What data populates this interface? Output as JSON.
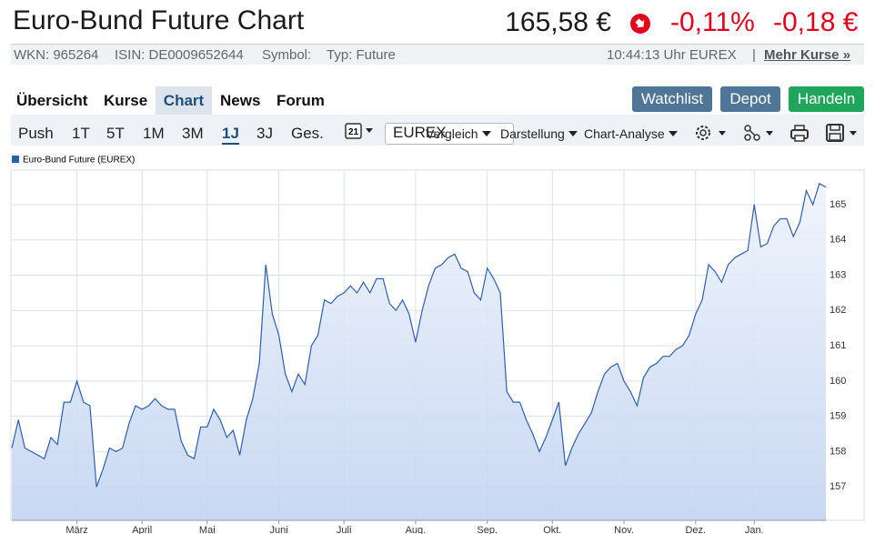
{
  "header": {
    "title": "Euro-Bund Future Chart",
    "price": "165,58 €",
    "change_pct": "-0,11%",
    "change_abs": "-0,18 €"
  },
  "info": {
    "wkn": "WKN: 965264",
    "isin": "ISIN: DE0009652644",
    "symbol": "Symbol:",
    "type": "Typ: Future",
    "time": "10:44:13 Uhr EUREX",
    "separator": "|",
    "more": "Mehr Kurse »"
  },
  "tabs": [
    "Übersicht",
    "Kurse",
    "Chart",
    "News",
    "Forum"
  ],
  "buttons": [
    "Watchlist",
    "Depot",
    "Handeln"
  ],
  "ranges": [
    "Push",
    "1T",
    "5T",
    "1M",
    "3M",
    "1J",
    "3J",
    "Ges."
  ],
  "toolbar": {
    "calendar": "21",
    "exchange": "EUREX",
    "compare": "Vergleich",
    "display": "Darstellung",
    "analysis": "Chart-Analyse"
  },
  "chart_data": {
    "type": "area",
    "categories": [
      null,
      null,
      null,
      null,
      null,
      null,
      null,
      null,
      null,
      null,
      "März",
      null,
      null,
      null,
      null,
      null,
      null,
      null,
      null,
      null,
      "April",
      null,
      null,
      null,
      null,
      null,
      null,
      null,
      null,
      null,
      "Mai",
      null,
      null,
      null,
      null,
      null,
      null,
      null,
      null,
      null,
      null,
      "Juni",
      null,
      null,
      null,
      null,
      null,
      null,
      null,
      null,
      null,
      "Juli",
      null,
      null,
      null,
      null,
      null,
      null,
      null,
      null,
      null,
      null,
      "Aug.",
      null,
      null,
      null,
      null,
      null,
      null,
      null,
      null,
      null,
      null,
      "Sep.",
      null,
      null,
      null,
      null,
      null,
      null,
      null,
      null,
      null,
      "Okt.",
      null,
      null,
      null,
      null,
      null,
      null,
      null,
      null,
      null,
      null,
      "Nov.",
      null,
      null,
      null,
      null,
      null,
      null,
      null,
      null,
      null,
      null,
      "Dez.",
      null,
      null,
      null,
      null,
      null,
      null,
      null,
      null,
      "Jan.",
      null,
      null,
      null,
      null,
      null,
      null,
      null,
      null,
      null,
      null,
      null
    ],
    "series": [
      {
        "name": "Euro-Bund Future (EUREX)",
        "color": "#2d5fae",
        "values": [
          158.1,
          158.9,
          158.1,
          158.0,
          157.9,
          157.8,
          158.4,
          158.2,
          159.4,
          159.4,
          160.0,
          159.4,
          159.3,
          157.0,
          157.5,
          158.1,
          158.0,
          158.1,
          158.8,
          159.3,
          159.2,
          159.3,
          159.5,
          159.3,
          159.2,
          159.2,
          158.3,
          157.9,
          157.8,
          158.7,
          158.7,
          159.2,
          158.9,
          158.4,
          158.6,
          157.9,
          158.9,
          159.5,
          160.5,
          163.3,
          161.9,
          161.3,
          160.2,
          159.7,
          160.2,
          159.9,
          161.0,
          161.3,
          162.3,
          162.2,
          162.4,
          162.5,
          162.7,
          162.5,
          162.8,
          162.5,
          162.9,
          162.9,
          162.2,
          162.0,
          162.3,
          161.9,
          161.1,
          162.0,
          162.7,
          163.2,
          163.3,
          163.5,
          163.6,
          163.2,
          163.1,
          162.5,
          162.3,
          163.2,
          162.9,
          162.5,
          159.7,
          159.4,
          159.4,
          158.9,
          158.5,
          158.0,
          158.4,
          158.9,
          159.4,
          157.6,
          158.1,
          158.5,
          158.8,
          159.1,
          159.7,
          160.2,
          160.4,
          160.5,
          160.0,
          159.7,
          159.3,
          160.1,
          160.4,
          160.5,
          160.7,
          160.7,
          160.9,
          161.0,
          161.3,
          161.9,
          162.3,
          163.3,
          163.1,
          162.8,
          163.3,
          163.5,
          163.6,
          163.7,
          165.0,
          163.8,
          163.9,
          164.4,
          164.6,
          164.6,
          164.1,
          164.5,
          165.4,
          165.0,
          165.6,
          165.5
        ]
      }
    ],
    "ylim": [
      156.05,
      165.98
    ],
    "yticks": [
      157,
      158,
      159,
      160,
      161,
      162,
      163,
      164,
      165
    ],
    "grid": true
  }
}
